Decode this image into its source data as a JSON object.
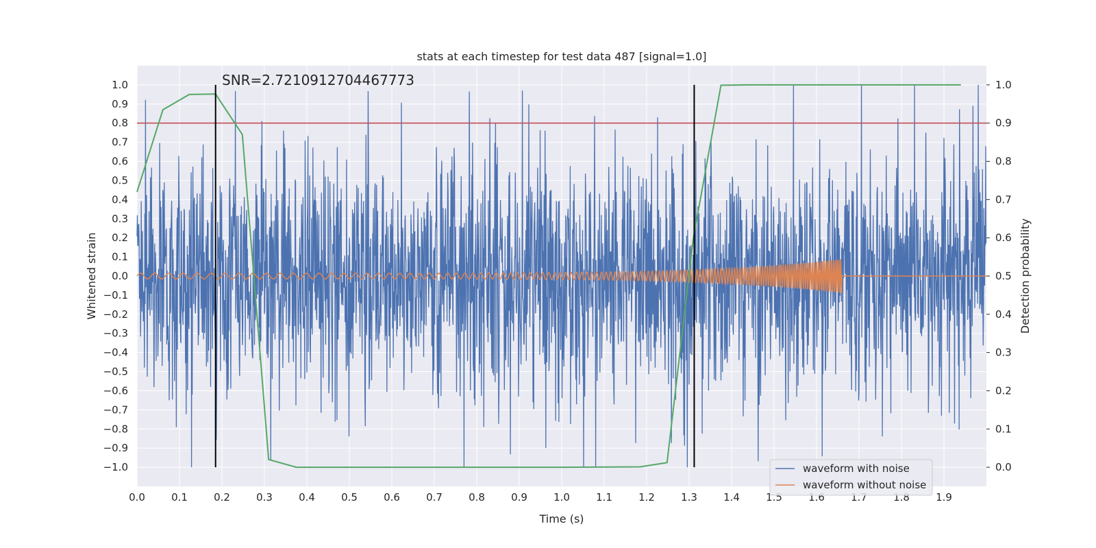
{
  "chart_data": {
    "type": "line",
    "title": "stats at each timestep for test data 487 [signal=1.0]",
    "xlabel": "Time (s)",
    "ylabel": "Whitened strain",
    "y2label": "Detection probability",
    "xlim": [
      0.0,
      2.0
    ],
    "ylim": [
      -1.1,
      1.1
    ],
    "y2lim": [
      -0.05,
      1.05
    ],
    "xticks": [
      "0.0",
      "0.1",
      "0.2",
      "0.3",
      "0.4",
      "0.5",
      "0.6",
      "0.7",
      "0.8",
      "0.9",
      "1.0",
      "1.1",
      "1.2",
      "1.3",
      "1.4",
      "1.5",
      "1.6",
      "1.7",
      "1.8",
      "1.9"
    ],
    "yticks": [
      "1.0",
      "0.9",
      "0.8",
      "0.7",
      "0.6",
      "0.5",
      "0.4",
      "0.3",
      "0.2",
      "0.1",
      "0.0",
      "−0.1",
      "−0.2",
      "−0.3",
      "−0.4",
      "−0.5",
      "−0.6",
      "−0.7",
      "−0.8",
      "−0.9",
      "−1.0"
    ],
    "y2ticks": [
      "1.0",
      "0.9",
      "0.8",
      "0.7",
      "0.6",
      "0.5",
      "0.4",
      "0.3",
      "0.2",
      "0.1",
      "0.0"
    ],
    "grid": true,
    "legend_position": "bottom-right",
    "annotation": "SNR=2.7210912704467773",
    "threshold": {
      "y": 0.8,
      "color": "#c44e52"
    },
    "vlines": [
      {
        "x": 0.185,
        "ymin": -1.0,
        "ymax": 1.0,
        "color": "#000000"
      },
      {
        "x": 1.312,
        "ymin": -1.0,
        "ymax": 1.0,
        "color": "#000000"
      }
    ],
    "series": [
      {
        "name": "waveform with noise",
        "color": "#4c72b0",
        "axis": "left",
        "noise": {
          "t_start": 0.0,
          "t_end": 2.0,
          "sample_rate": 1200,
          "amplitude_sd": 0.3,
          "clip": 1.0
        }
      },
      {
        "name": "waveform without noise",
        "color": "#dd8452",
        "axis": "left",
        "chirp": {
          "t_start": 0.0,
          "t_merge": 1.66,
          "f_start": 30,
          "f_end": 240,
          "a_start": 0.015,
          "a_end": 0.09
        }
      },
      {
        "axis": "right",
        "color": "#55a868",
        "x": [
          0.0,
          0.061,
          0.123,
          0.185,
          0.248,
          0.31,
          0.375,
          0.5,
          0.75,
          1.0,
          1.185,
          1.248,
          1.31,
          1.375,
          1.44,
          1.6,
          1.8,
          1.94
        ],
        "y": [
          0.72,
          0.935,
          0.975,
          0.976,
          0.87,
          0.02,
          0.0,
          0.0,
          0.0,
          0.0,
          0.001,
          0.012,
          0.6,
          0.999,
          1.0,
          1.0,
          1.0,
          1.0
        ]
      }
    ]
  }
}
